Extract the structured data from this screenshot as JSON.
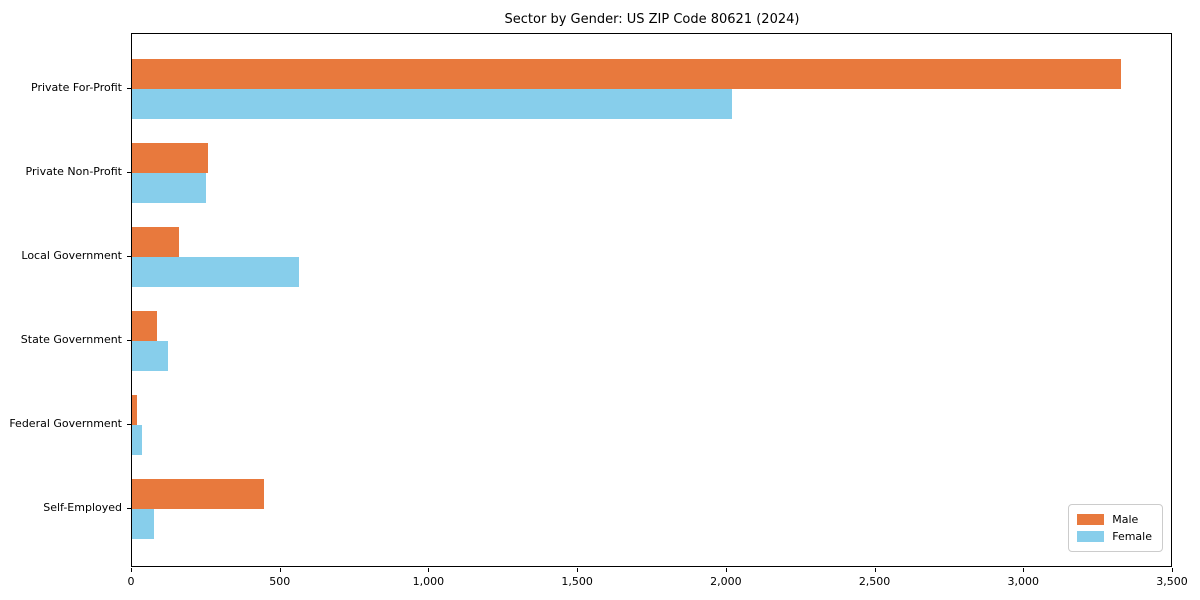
{
  "title": "Sector by Gender: US ZIP Code 80621 (2024)",
  "colors": {
    "male": "#E8793D",
    "female": "#87CEEB",
    "axis": "#000000",
    "text": "#000000",
    "legend_border": "#cccccc",
    "background": "#ffffff"
  },
  "chart_data": {
    "type": "bar",
    "orientation": "horizontal",
    "title": "Sector by Gender: US ZIP Code 80621 (2024)",
    "categories": [
      "Private For-Profit",
      "Private Non-Profit",
      "Local Government",
      "State Government",
      "Federal Government",
      "Self-Employed"
    ],
    "series": [
      {
        "name": "Male",
        "color": "#E8793D",
        "values": [
          3330,
          255,
          158,
          84,
          17,
          444
        ]
      },
      {
        "name": "Female",
        "color": "#87CEEB",
        "values": [
          2020,
          249,
          561,
          122,
          34,
          74
        ]
      }
    ],
    "xlabel": "",
    "ylabel": "",
    "xlim": [
      0,
      3500
    ],
    "xticks": [
      0,
      500,
      1000,
      1500,
      2000,
      2500,
      3000,
      3500
    ],
    "xtick_labels": [
      "0",
      "500",
      "1,000",
      "1,500",
      "2,000",
      "2,500",
      "3,000",
      "3,500"
    ],
    "legend_position": "lower right",
    "grid": false
  },
  "legend": {
    "items": [
      {
        "label": "Male"
      },
      {
        "label": "Female"
      }
    ]
  }
}
